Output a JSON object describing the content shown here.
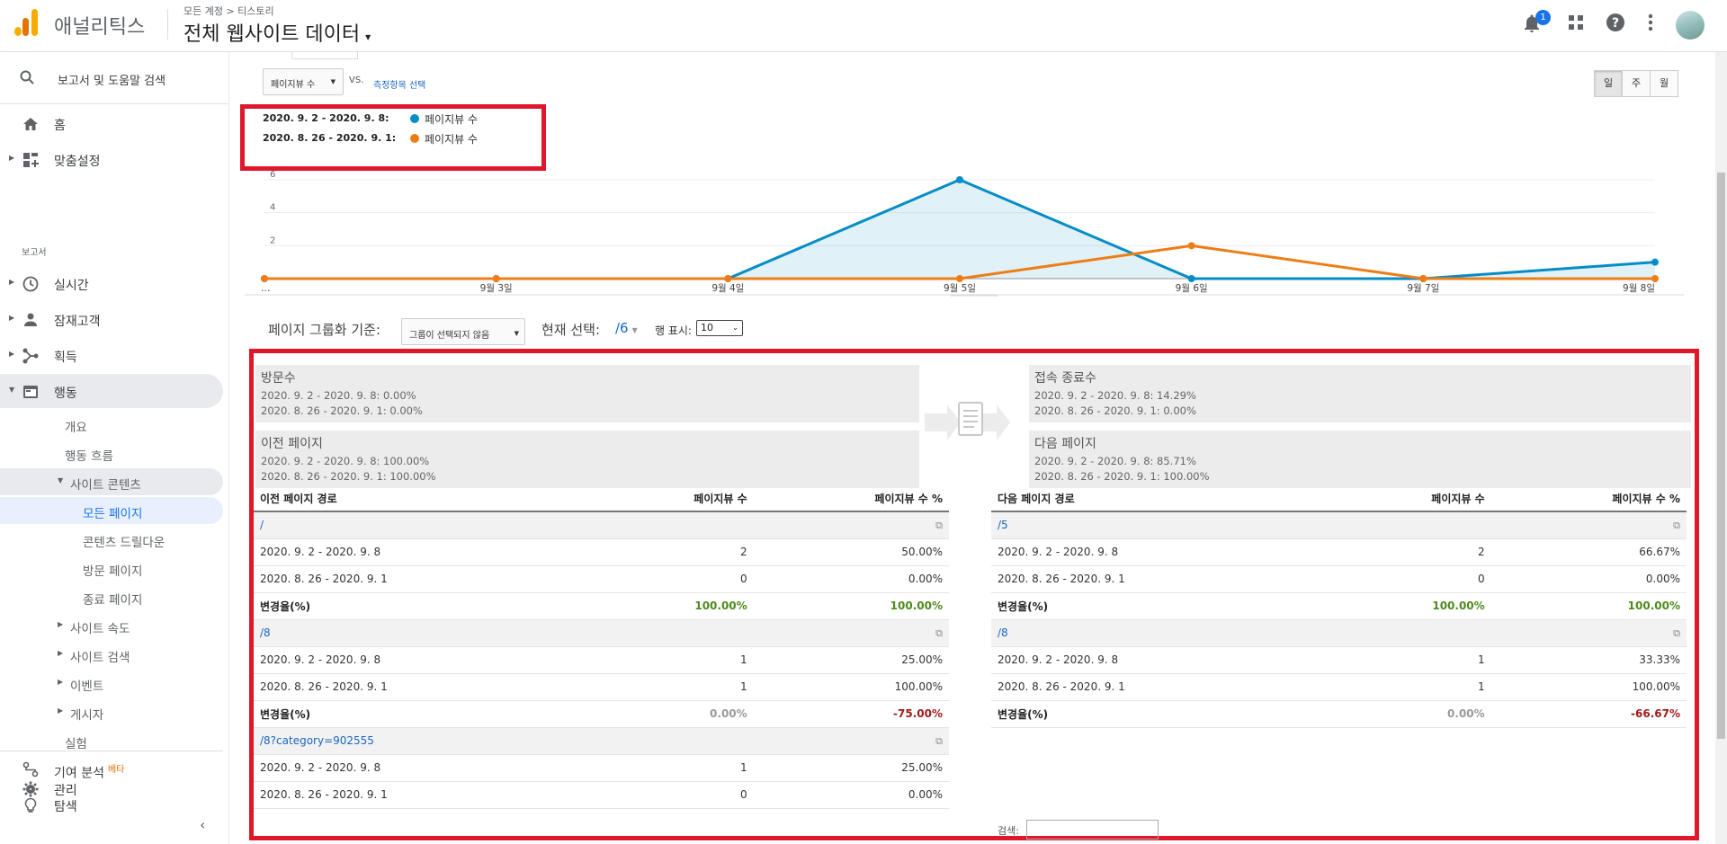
{
  "header": {
    "app_name": "애널리틱스",
    "breadcrumb": "모든 계정 > 티스토리",
    "property": "전체 웹사이트 데이터",
    "notification_count": "1"
  },
  "sidebar": {
    "search_label": "보고서 및 도움말 검색",
    "home": "홈",
    "customization": "맞춤설정",
    "reports_section": "보고서",
    "realtime": "실시간",
    "audience": "잠재고객",
    "acquisition": "획득",
    "behavior": "행동",
    "behavior_sub": {
      "overview": "개요",
      "flow": "행동 흐름",
      "site_content": "사이트 콘텐츠",
      "all_pages": "모든 페이지",
      "content_drilldown": "콘텐츠 드릴다운",
      "landing_pages": "방문 페이지",
      "exit_pages": "종료 페이지",
      "site_speed": "사이트 속도",
      "site_search": "사이트 검색",
      "events": "이벤트",
      "publisher": "게시자",
      "experiments": "실험"
    },
    "attribution": "기여 분석",
    "attribution_badge": "베타",
    "discover": "탐색",
    "admin": "관리"
  },
  "toolbar": {
    "metric": "페이지뷰 수",
    "vs": "VS.",
    "compare_link": "측정항목 선택",
    "granularity": [
      "일",
      "주",
      "월"
    ]
  },
  "legend": {
    "range1": "2020. 9. 2 - 2020. 9. 8:",
    "range2": "2020. 8. 26 - 2020. 9. 1:",
    "series1": "페이지뷰 수",
    "series2": "페이지뷰 수"
  },
  "chart_data": {
    "type": "line",
    "x": [
      "…",
      "9월 3일",
      "9월 4일",
      "9월 5일",
      "9월 6일",
      "9월 7일",
      "9월 8일"
    ],
    "y_ticks": [
      "2",
      "4",
      "6"
    ],
    "ylim": [
      0,
      6
    ],
    "grid": true,
    "legend_placement": "top-left",
    "series": [
      {
        "name": "페이지뷰 수",
        "color": "#058dc7",
        "values": [
          0,
          0,
          0,
          6,
          0,
          0,
          1
        ],
        "area": true
      },
      {
        "name": "페이지뷰 수",
        "color": "#ed7e17",
        "values": [
          0,
          0,
          0,
          0,
          2,
          0,
          0
        ],
        "area": false
      }
    ]
  },
  "controls": {
    "grouping_label": "페이지 그룹화 기준:",
    "grouping_value": "그룹이 선택되지 않음",
    "current_label": "현재 선택:",
    "current_value": "/6",
    "rows_label": "행 표시:",
    "rows_value": "10"
  },
  "summary": {
    "entrances": {
      "title": "방문수",
      "line1": "2020. 9. 2 - 2020. 9. 8: 0.00%",
      "line2": "2020. 8. 26 - 2020. 9. 1: 0.00%"
    },
    "previous": {
      "title": "이전 페이지",
      "line1": "2020. 9. 2 - 2020. 9. 8: 100.00%",
      "line2": "2020. 8. 26 - 2020. 9. 1: 100.00%"
    },
    "exits": {
      "title": "접속 종료수",
      "line1": "2020. 9. 2 - 2020. 9. 8: 14.29%",
      "line2": "2020. 8. 26 - 2020. 9. 1: 0.00%"
    },
    "next": {
      "title": "다음 페이지",
      "line1": "2020. 9. 2 - 2020. 9. 8: 85.71%",
      "line2": "2020. 8. 26 - 2020. 9. 1: 100.00%"
    }
  },
  "prev_table": {
    "headers": [
      "이전 페이지 경로",
      "페이지뷰 수",
      "페이지뷰 수 %"
    ],
    "rows": [
      {
        "kind": "path",
        "c": [
          "/",
          "",
          ""
        ]
      },
      {
        "kind": "data",
        "c": [
          "2020. 9. 2 - 2020. 9. 8",
          "2",
          "50.00%"
        ]
      },
      {
        "kind": "data",
        "c": [
          "2020. 8. 26 - 2020. 9. 1",
          "0",
          "0.00%"
        ]
      },
      {
        "kind": "change",
        "c": [
          "변경율(%)",
          "100.00%",
          "100.00%"
        ],
        "s": [
          "",
          "pos",
          "pos"
        ]
      },
      {
        "kind": "path",
        "c": [
          "/8",
          "",
          ""
        ]
      },
      {
        "kind": "data",
        "c": [
          "2020. 9. 2 - 2020. 9. 8",
          "1",
          "25.00%"
        ]
      },
      {
        "kind": "data",
        "c": [
          "2020. 8. 26 - 2020. 9. 1",
          "1",
          "100.00%"
        ]
      },
      {
        "kind": "change",
        "c": [
          "변경율(%)",
          "0.00%",
          "-75.00%"
        ],
        "s": [
          "",
          "neu",
          "neg"
        ]
      },
      {
        "kind": "path",
        "c": [
          "/8?category=902555",
          "",
          ""
        ]
      },
      {
        "kind": "data",
        "c": [
          "2020. 9. 2 - 2020. 9. 8",
          "1",
          "25.00%"
        ]
      },
      {
        "kind": "data",
        "c": [
          "2020. 8. 26 - 2020. 9. 1",
          "0",
          "0.00%"
        ]
      }
    ]
  },
  "next_table": {
    "headers": [
      "다음 페이지 경로",
      "페이지뷰 수",
      "페이지뷰 수 %"
    ],
    "rows": [
      {
        "kind": "path",
        "c": [
          "/5",
          "",
          ""
        ]
      },
      {
        "kind": "data",
        "c": [
          "2020. 9. 2 - 2020. 9. 8",
          "2",
          "66.67%"
        ]
      },
      {
        "kind": "data",
        "c": [
          "2020. 8. 26 - 2020. 9. 1",
          "0",
          "0.00%"
        ]
      },
      {
        "kind": "change",
        "c": [
          "변경율(%)",
          "100.00%",
          "100.00%"
        ],
        "s": [
          "",
          "pos",
          "pos"
        ]
      },
      {
        "kind": "path",
        "c": [
          "/8",
          "",
          ""
        ]
      },
      {
        "kind": "data",
        "c": [
          "2020. 9. 2 - 2020. 9. 8",
          "1",
          "33.33%"
        ]
      },
      {
        "kind": "data",
        "c": [
          "2020. 8. 26 - 2020. 9. 1",
          "1",
          "100.00%"
        ]
      },
      {
        "kind": "change",
        "c": [
          "변경율(%)",
          "0.00%",
          "-66.67%"
        ],
        "s": [
          "",
          "neu",
          "neg"
        ]
      }
    ]
  },
  "next_search_label": "검색:"
}
